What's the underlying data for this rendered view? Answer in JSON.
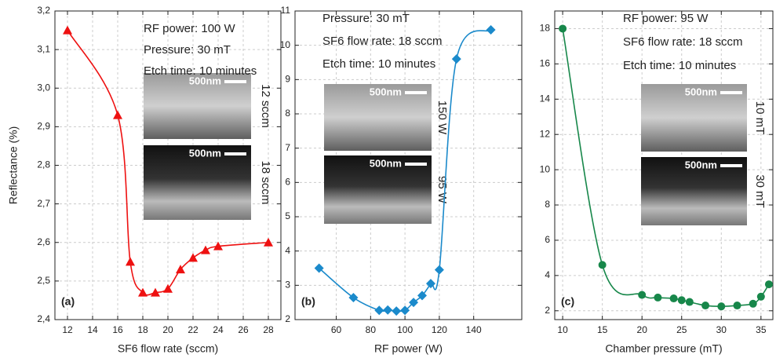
{
  "chart_data": [
    {
      "type": "line",
      "panel_label": "(a)",
      "x_label": "SF6 flow rate (sccm)",
      "y_label": "Reflectance (%)",
      "annotations": [
        "RF power: 100 W",
        "Pressure: 30 mT",
        "Etch time: 10 minutes"
      ],
      "insets": [
        {
          "scale_bar": "500nm",
          "label": "12 sccm"
        },
        {
          "scale_bar": "500nm",
          "label": "18 sccm"
        }
      ],
      "x": [
        12,
        16,
        17,
        18,
        19,
        20,
        21,
        22,
        23,
        24,
        28
      ],
      "series": [
        {
          "color": "#ee1111",
          "marker": "triangle",
          "values": [
            3.15,
            2.93,
            2.55,
            2.47,
            2.47,
            2.48,
            2.53,
            2.56,
            2.58,
            2.59,
            2.6
          ]
        }
      ],
      "xlim": [
        11,
        29
      ],
      "xticks": [
        12,
        14,
        16,
        18,
        20,
        22,
        24,
        26,
        28
      ],
      "ylim": [
        2.4,
        3.2
      ],
      "yticks": [
        {
          "value": 2.4,
          "label": "2,4"
        },
        {
          "value": 2.5,
          "label": "2,5"
        },
        {
          "value": 2.6,
          "label": "2,6"
        },
        {
          "value": 2.7,
          "label": "2,7"
        },
        {
          "value": 2.8,
          "label": "2,8"
        },
        {
          "value": 2.9,
          "label": "2,9"
        },
        {
          "value": 3.0,
          "label": "3,0"
        },
        {
          "value": 3.1,
          "label": "3,1"
        },
        {
          "value": 3.2,
          "label": "3,2"
        }
      ],
      "grid": true
    },
    {
      "type": "line",
      "panel_label": "(b)",
      "x_label": "RF power (W)",
      "annotations": [
        "Pressure: 30 mT",
        "SF6 flow rate: 18 sccm",
        "Etch time: 10 minutes"
      ],
      "insets": [
        {
          "scale_bar": "500nm",
          "label": "150 W"
        },
        {
          "scale_bar": "500nm",
          "label": "95 W"
        }
      ],
      "x": [
        50,
        70,
        85,
        90,
        95,
        100,
        105,
        110,
        115,
        120,
        130,
        150
      ],
      "series": [
        {
          "color": "#1b8acb",
          "marker": "diamond",
          "values": [
            3.5,
            2.64,
            2.27,
            2.28,
            2.25,
            2.27,
            2.5,
            2.7,
            3.05,
            3.45,
            9.6,
            10.45
          ]
        }
      ],
      "xlim": [
        36,
        168
      ],
      "xticks": [
        60,
        80,
        100,
        120,
        140
      ],
      "ylim": [
        2,
        11
      ],
      "yticks": [
        2,
        3,
        4,
        5,
        6,
        7,
        8,
        9,
        10,
        11
      ],
      "grid": true
    },
    {
      "type": "line",
      "panel_label": "(c)",
      "x_label": "Chamber pressure (mT)",
      "annotations": [
        "RF power: 95 W",
        "SF6 flow rate: 18 sccm",
        "Etch time: 10 minutes"
      ],
      "insets": [
        {
          "scale_bar": "500nm",
          "label": "10 mT"
        },
        {
          "scale_bar": "500nm",
          "label": "30 mT"
        }
      ],
      "x": [
        10,
        15,
        20,
        22,
        24,
        25,
        26,
        28,
        30,
        32,
        34,
        35,
        36
      ],
      "series": [
        {
          "color": "#17874a",
          "marker": "circle",
          "values": [
            18,
            4.6,
            2.9,
            2.75,
            2.7,
            2.6,
            2.5,
            2.3,
            2.25,
            2.3,
            2.4,
            2.8,
            3.5
          ]
        }
      ],
      "xlim": [
        9,
        36.5
      ],
      "xticks": [
        10,
        15,
        20,
        25,
        30,
        35
      ],
      "ylim": [
        1.5,
        19
      ],
      "yticks": [
        2,
        4,
        6,
        8,
        10,
        12,
        14,
        16,
        18
      ],
      "grid": true
    }
  ]
}
